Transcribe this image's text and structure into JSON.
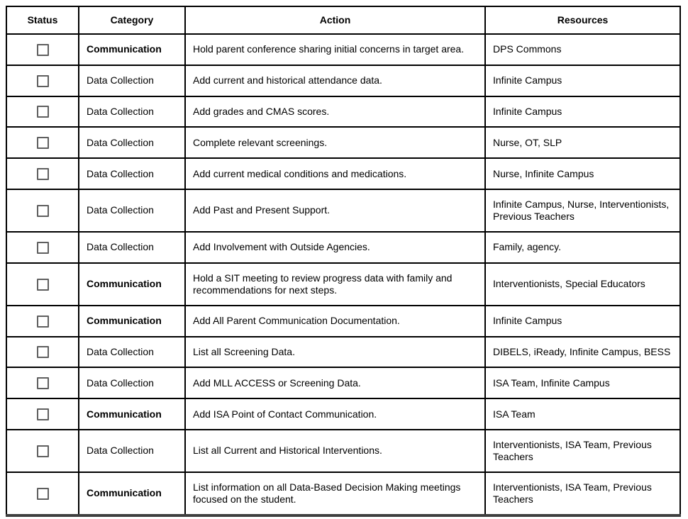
{
  "table": {
    "headers": {
      "status": "Status",
      "category": "Category",
      "action": "Action",
      "resources": "Resources"
    },
    "rows": [
      {
        "checked": false,
        "category": "Communication",
        "category_bold": true,
        "action": "Hold parent conference sharing initial concerns in target area.",
        "resources": "DPS Commons"
      },
      {
        "checked": false,
        "category": "Data Collection",
        "category_bold": false,
        "action": "Add current and historical attendance data.",
        "resources": "Infinite Campus"
      },
      {
        "checked": false,
        "category": "Data Collection",
        "category_bold": false,
        "action": "Add grades and CMAS scores.",
        "resources": "Infinite Campus"
      },
      {
        "checked": false,
        "category": "Data Collection",
        "category_bold": false,
        "action": "Complete relevant screenings.",
        "resources": "Nurse, OT, SLP"
      },
      {
        "checked": false,
        "category": "Data Collection",
        "category_bold": false,
        "action": "Add current medical conditions and medications.",
        "resources": "Nurse, Infinite Campus"
      },
      {
        "checked": false,
        "category": "Data Collection",
        "category_bold": false,
        "action": "Add Past and Present Support.",
        "resources": "Infinite Campus, Nurse, Interventionists, Previous Teachers"
      },
      {
        "checked": false,
        "category": "Data Collection",
        "category_bold": false,
        "action": "Add Involvement with Outside Agencies.",
        "resources": "Family, agency."
      },
      {
        "checked": false,
        "category": "Communication",
        "category_bold": true,
        "action": "Hold a SIT meeting to review progress data with family and recommendations for next steps.",
        "resources": "Interventionists, Special Educators"
      },
      {
        "checked": false,
        "category": "Communication",
        "category_bold": true,
        "action": "Add All Parent Communication Documentation.",
        "resources": "Infinite Campus"
      },
      {
        "checked": false,
        "category": "Data Collection",
        "category_bold": false,
        "action": "List all Screening Data.",
        "resources": "DIBELS, iReady, Infinite Campus, BESS"
      },
      {
        "checked": false,
        "category": "Data Collection",
        "category_bold": false,
        "action": "Add MLL ACCESS or Screening Data.",
        "resources": "ISA Team, Infinite Campus"
      },
      {
        "checked": false,
        "category": "Communication",
        "category_bold": true,
        "action": "Add ISA Point of Contact Communication.",
        "resources": "ISA Team"
      },
      {
        "checked": false,
        "category": "Data Collection",
        "category_bold": false,
        "action": "List all Current and Historical Interventions.",
        "resources": "Interventionists, ISA Team, Previous Teachers"
      },
      {
        "checked": false,
        "category": "Communication",
        "category_bold": true,
        "action": "List information on all Data-Based Decision Making meetings focused on the student.",
        "resources": "Interventionists, ISA Team, Previous Teachers"
      }
    ]
  },
  "colors": {
    "table_border": "#000000",
    "bottom_rule": "#3f3f3f",
    "checkbox_border": "#5f5f5f",
    "text": "#000000",
    "background": "#ffffff"
  }
}
